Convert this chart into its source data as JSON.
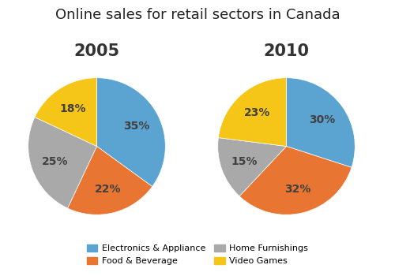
{
  "title": "Online sales for retail sectors in Canada",
  "title_fontsize": 13,
  "subtitle_2005": "2005",
  "subtitle_2010": "2010",
  "subtitle_fontsize": 15,
  "categories": [
    "Electronics & Appliance",
    "Food & Beverage",
    "Home Furnishings",
    "Video Games"
  ],
  "values_2005": [
    35,
    22,
    25,
    18
  ],
  "values_2010": [
    30,
    32,
    15,
    23
  ],
  "colors": [
    "#5BA3D0",
    "#E87532",
    "#A9A9A9",
    "#F5C518"
  ],
  "legend_labels": [
    "Electronics & Appliance",
    "Food & Beverage",
    "Home Furnishings",
    "Video Games"
  ],
  "autopct_fontsize": 10,
  "startangle_2005": 90,
  "startangle_2010": 90,
  "background_color": "#ffffff",
  "fig_width": 5.0,
  "fig_height": 3.5
}
